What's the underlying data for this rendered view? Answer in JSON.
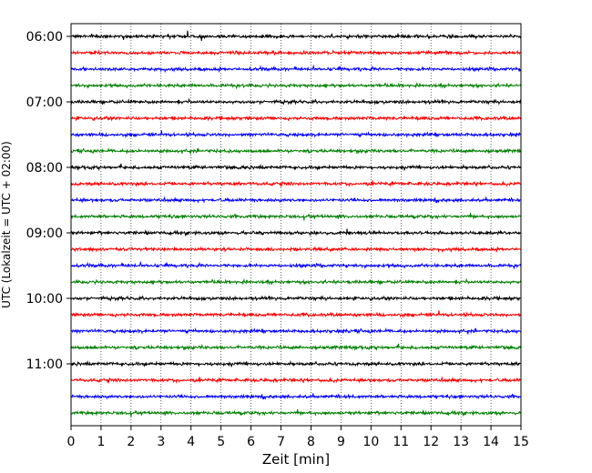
{
  "chart_data": {
    "type": "line",
    "title": "",
    "xlabel": "Zeit  [min]",
    "ylabel": "UTC (Lokalzeit = UTC + 02:00)",
    "xlim": [
      0,
      15
    ],
    "x_ticks": [
      "0",
      "1",
      "2",
      "3",
      "4",
      "5",
      "6",
      "7",
      "8",
      "9",
      "10",
      "11",
      "12",
      "13",
      "14",
      "15"
    ],
    "y_tick_labels": [
      "06:00",
      "07:00",
      "08:00",
      "09:00",
      "10:00",
      "11:00"
    ],
    "grid": "vertical-dotted",
    "trace_interval_min": 15,
    "start_time_utc": "06:00",
    "end_time_utc": "11:45",
    "trace_colors": [
      "#000000",
      "#ff0000",
      "#0000ff",
      "#008000"
    ],
    "series": [
      {
        "start": "06:00",
        "color": "#000000"
      },
      {
        "start": "06:15",
        "color": "#ff0000"
      },
      {
        "start": "06:30",
        "color": "#0000ff"
      },
      {
        "start": "06:45",
        "color": "#008000"
      },
      {
        "start": "07:00",
        "color": "#000000"
      },
      {
        "start": "07:15",
        "color": "#ff0000"
      },
      {
        "start": "07:30",
        "color": "#0000ff"
      },
      {
        "start": "07:45",
        "color": "#008000"
      },
      {
        "start": "08:00",
        "color": "#000000"
      },
      {
        "start": "08:15",
        "color": "#ff0000"
      },
      {
        "start": "08:30",
        "color": "#0000ff"
      },
      {
        "start": "08:45",
        "color": "#008000"
      },
      {
        "start": "09:00",
        "color": "#000000"
      },
      {
        "start": "09:15",
        "color": "#ff0000"
      },
      {
        "start": "09:30",
        "color": "#0000ff"
      },
      {
        "start": "09:45",
        "color": "#008000"
      },
      {
        "start": "10:00",
        "color": "#000000"
      },
      {
        "start": "10:15",
        "color": "#ff0000"
      },
      {
        "start": "10:30",
        "color": "#0000ff"
      },
      {
        "start": "10:45",
        "color": "#008000"
      },
      {
        "start": "11:00",
        "color": "#000000"
      },
      {
        "start": "11:15",
        "color": "#ff0000"
      },
      {
        "start": "11:30",
        "color": "#0000ff"
      },
      {
        "start": "11:45",
        "color": "#008000"
      }
    ]
  }
}
